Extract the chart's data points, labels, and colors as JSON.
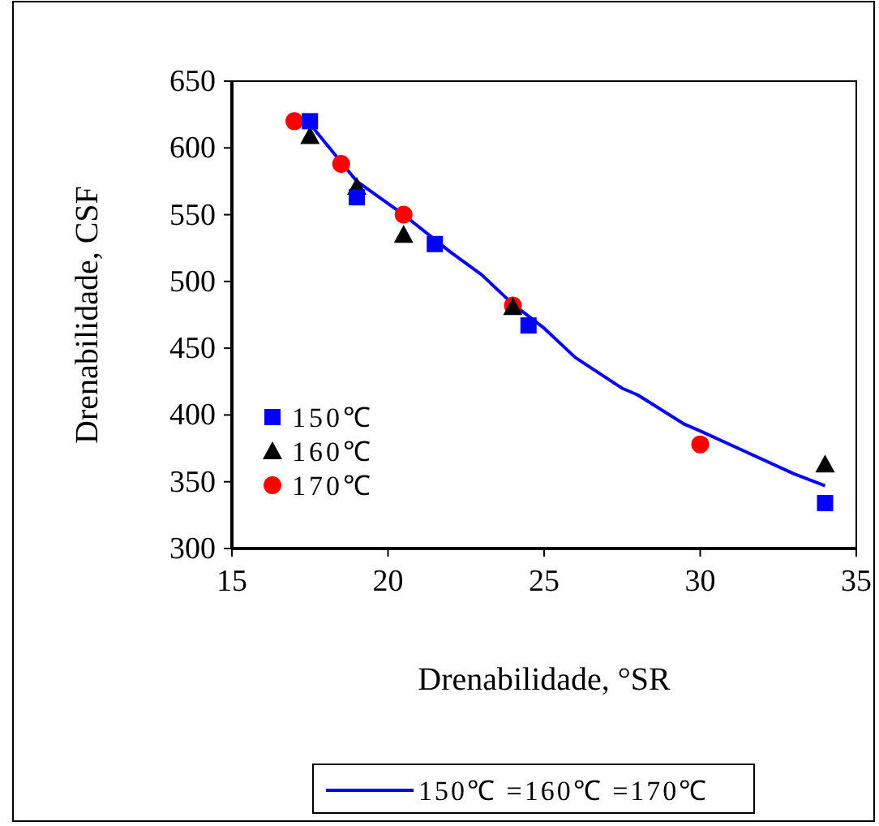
{
  "chart_data": {
    "type": "scatter",
    "xlabel": "Drenabilidade, °SR",
    "ylabel": "Drenabilidade, CSF",
    "xlim": [
      15,
      35
    ],
    "xticks": [
      15,
      20,
      25,
      30,
      35
    ],
    "ylim": [
      300,
      650
    ],
    "yticks": [
      300,
      350,
      400,
      450,
      500,
      550,
      600,
      650
    ],
    "grid": false,
    "legend": "left",
    "series": [
      {
        "name": "150℃",
        "color": "#0000ff",
        "marker": "square",
        "x": [
          17.5,
          19,
          21.5,
          24.5,
          34
        ],
        "values": [
          620,
          563,
          528,
          467,
          334
        ]
      },
      {
        "name": "160℃",
        "color": "#000000",
        "marker": "triangle",
        "x": [
          17.5,
          19,
          20.5,
          24,
          34
        ],
        "values": [
          609,
          571,
          535,
          481,
          363
        ]
      },
      {
        "name": "170℃",
        "color": "#ff0000",
        "marker": "circle",
        "x": [
          17,
          18.5,
          20.5,
          24,
          30
        ],
        "values": [
          620,
          588,
          550,
          482,
          378
        ]
      },
      {
        "name": "150℃ =160℃ =170℃",
        "type": "line",
        "color": "#0000ff",
        "marker": "none",
        "x": [
          17.5,
          19,
          20.5,
          22,
          23,
          24,
          25,
          26,
          27.5,
          28,
          29.5,
          30,
          31.5,
          33,
          34
        ],
        "values": [
          618,
          575,
          550,
          522,
          505,
          483,
          465,
          443,
          420,
          415,
          393,
          388,
          372,
          356,
          347
        ]
      }
    ]
  }
}
